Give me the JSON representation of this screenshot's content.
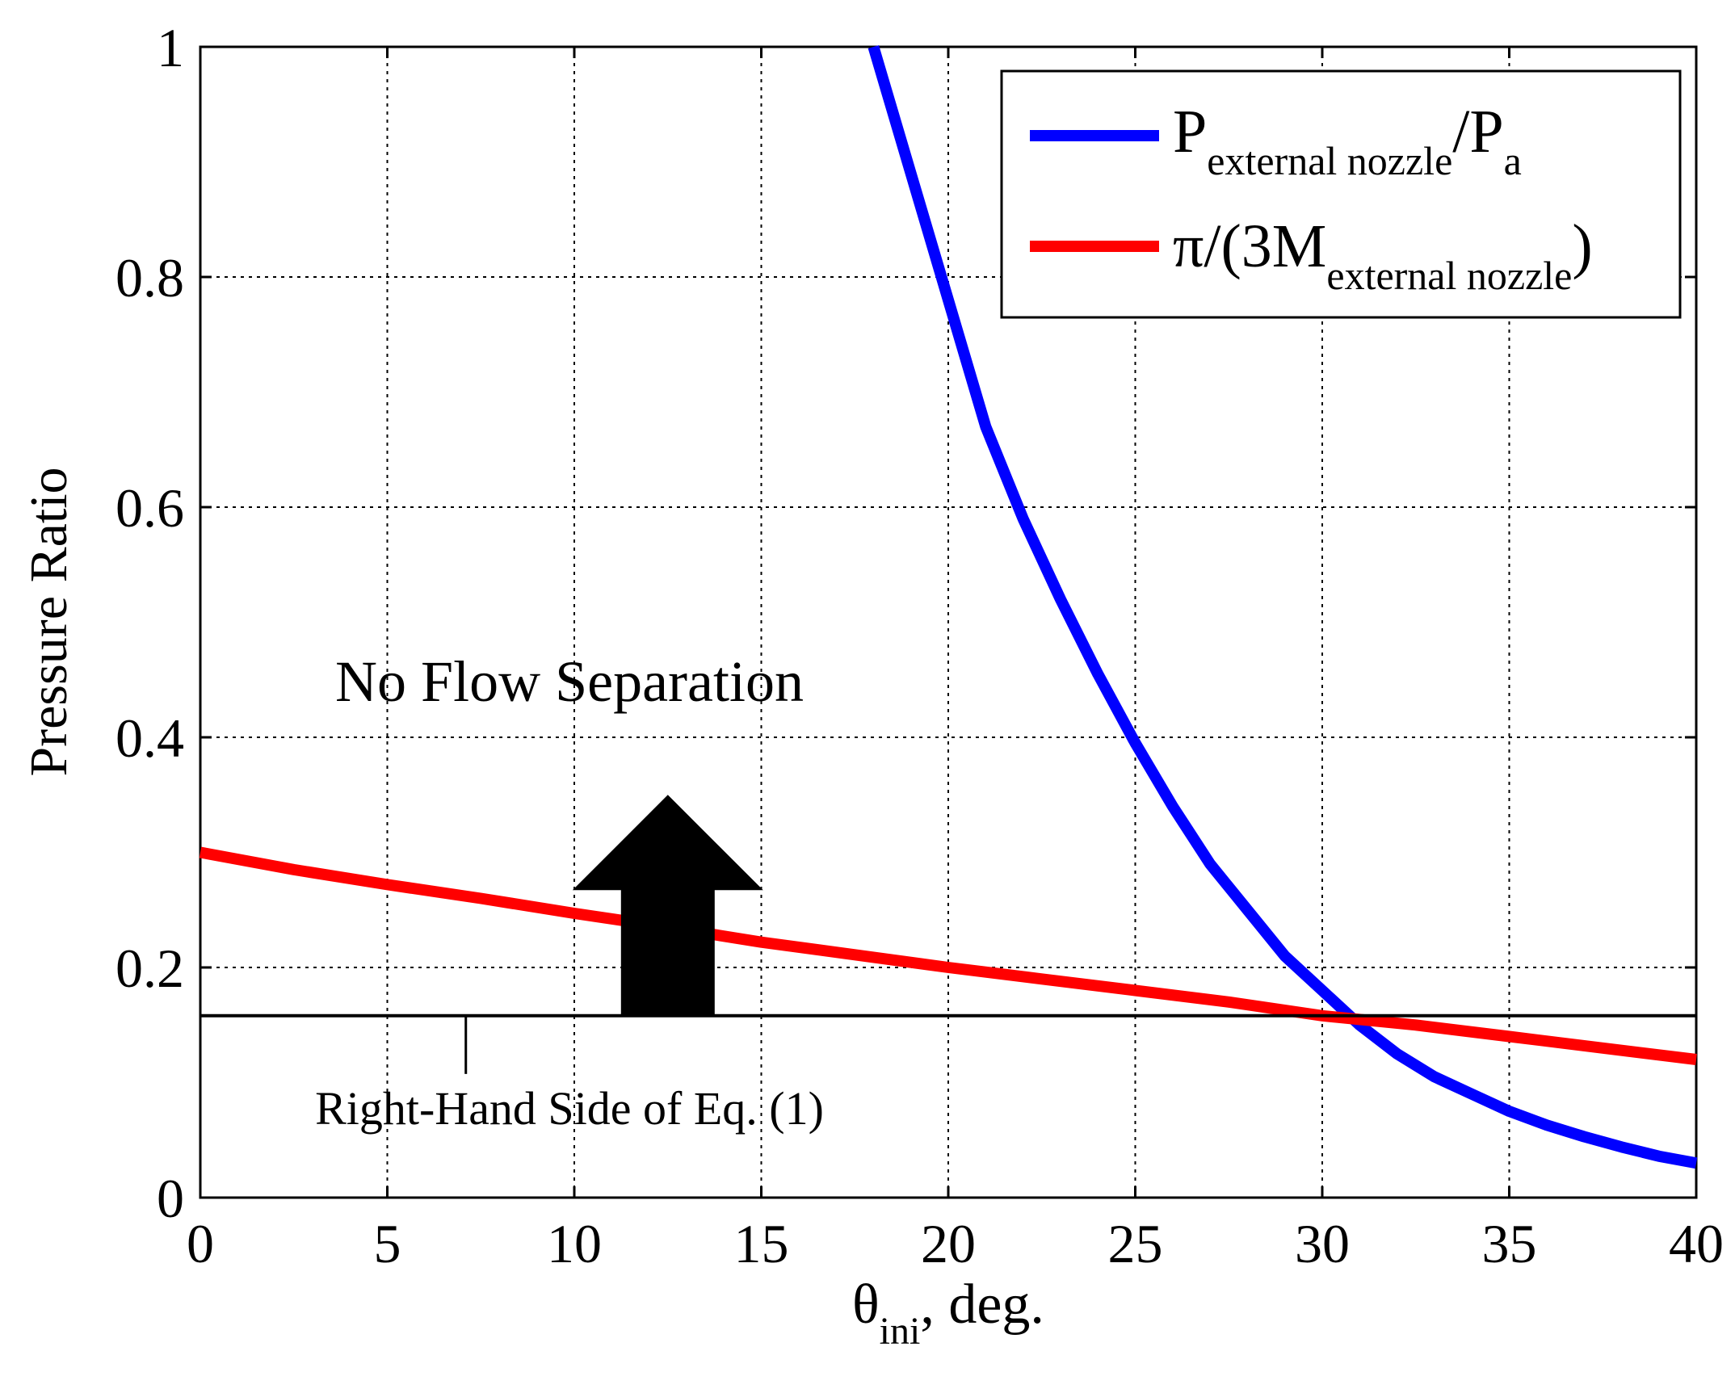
{
  "chart_data": {
    "type": "line",
    "title": "",
    "xlabel": {
      "main": "θ",
      "sub": "ini",
      "suffix": ", deg."
    },
    "ylabel": "Pressure Ratio",
    "xlim": [
      0,
      40
    ],
    "ylim": [
      0,
      1
    ],
    "xticks": [
      0,
      5,
      10,
      15,
      20,
      25,
      30,
      35,
      40
    ],
    "yticks": [
      0,
      0.2,
      0.4,
      0.6,
      0.8,
      1
    ],
    "ytick_labels": [
      "0",
      "0.2",
      "0.4",
      "0.6",
      "0.8",
      "1"
    ],
    "xtick_labels": [
      "0",
      "5",
      "10",
      "15",
      "20",
      "25",
      "30",
      "35",
      "40"
    ],
    "grid": true,
    "legend_position": "top-right",
    "series": [
      {
        "name": "P_external nozzle / P_a",
        "legend": {
          "main": "P",
          "sub": "external nozzle",
          "mid": "/P",
          "sub2": "a"
        },
        "color": "#0000ff",
        "x": [
          18,
          19,
          20,
          21,
          22,
          23,
          24,
          25,
          26,
          27,
          28,
          29,
          30,
          31,
          32,
          33,
          34,
          35,
          36,
          37,
          38,
          39,
          40
        ],
        "y": [
          1.0,
          0.89,
          0.78,
          0.67,
          0.59,
          0.52,
          0.455,
          0.395,
          0.34,
          0.29,
          0.25,
          0.21,
          0.18,
          0.15,
          0.125,
          0.105,
          0.09,
          0.075,
          0.063,
          0.053,
          0.044,
          0.036,
          0.03
        ]
      },
      {
        "name": "π/(3M_external nozzle)",
        "legend": {
          "main": "π/(3M",
          "sub": "external nozzle",
          "end": ")"
        },
        "color": "#ff0000",
        "x": [
          0,
          2.5,
          5,
          7.5,
          10,
          12.5,
          15,
          17.5,
          20,
          22.5,
          25,
          27.5,
          30,
          32.5,
          35,
          37.5,
          40
        ],
        "y": [
          0.3,
          0.285,
          0.272,
          0.26,
          0.247,
          0.235,
          0.222,
          0.211,
          0.2,
          0.19,
          0.18,
          0.17,
          0.158,
          0.15,
          0.14,
          0.13,
          0.12
        ]
      },
      {
        "name": "Right-Hand Side of Eq. (1)",
        "color": "#000000",
        "x": [
          0,
          40
        ],
        "y": [
          0.158,
          0.158
        ]
      }
    ],
    "annotations": {
      "region_label": "No Flow Separation",
      "line_label": "Right-Hand Side of Eq. (1)",
      "arrow": {
        "x": 12.5,
        "y_start": 0.158,
        "y_end": 0.35,
        "color": "#000000"
      },
      "leader_x": 7.1
    }
  }
}
